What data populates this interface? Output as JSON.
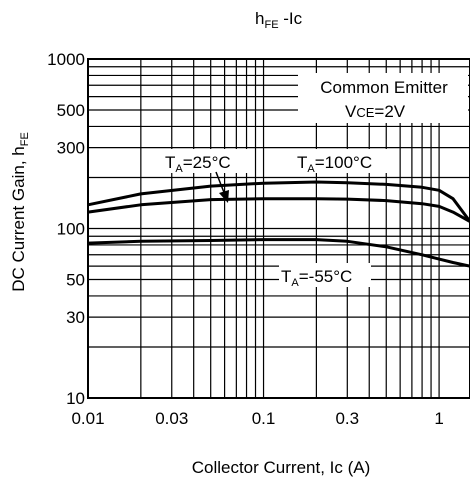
{
  "chart_data": {
    "type": "line",
    "title": "h",
    "title_sub": "FE",
    "title_tail": " -Ic",
    "xlabel": "Collector Current, Ic (A)",
    "ylabel": "DC Current Gain,  h",
    "ylabel_sub": "FE",
    "xscale": "log",
    "yscale": "log",
    "xlim": [
      0.01,
      1.5
    ],
    "ylim": [
      10,
      1000
    ],
    "grid": true,
    "x_tick_values": [
      0.01,
      0.03,
      0.1,
      0.3,
      1
    ],
    "x_tick_labels": [
      "0.01",
      "0.03",
      "0.1",
      "0.3",
      "1"
    ],
    "y_tick_values": [
      10,
      30,
      50,
      100,
      300,
      500,
      1000
    ],
    "y_tick_labels": [
      "10",
      "30",
      "50",
      "100",
      "300",
      "500",
      "1000"
    ],
    "series": [
      {
        "name": "TA=100°C",
        "x": [
          0.01,
          0.02,
          0.05,
          0.1,
          0.2,
          0.3,
          0.5,
          0.8,
          1.0,
          1.2,
          1.5
        ],
        "y": [
          138,
          160,
          178,
          185,
          188,
          186,
          182,
          175,
          168,
          150,
          110
        ]
      },
      {
        "name": "TA=25°C",
        "x": [
          0.01,
          0.02,
          0.05,
          0.1,
          0.2,
          0.3,
          0.5,
          0.8,
          1.0,
          1.2,
          1.5
        ],
        "y": [
          125,
          138,
          148,
          150,
          150,
          149,
          146,
          140,
          135,
          125,
          110
        ]
      },
      {
        "name": "TA=-55°C",
        "x": [
          0.01,
          0.02,
          0.05,
          0.1,
          0.2,
          0.3,
          0.5,
          0.8,
          1.0,
          1.2,
          1.5
        ],
        "y": [
          82,
          84,
          85,
          86,
          86,
          84,
          78,
          70,
          66,
          63,
          60
        ]
      }
    ],
    "annotations": {
      "box_line1": "Common Emitter",
      "box_line2_main": "V",
      "box_line2_sub": "CE",
      "box_line2_tail": "=2V",
      "t25_main": "T",
      "t25_sub": "A",
      "t25_tail": "=25°C",
      "t100_main": "T",
      "t100_sub": "A",
      "t100_tail": "=100°C",
      "tm55_main": "T",
      "tm55_sub": "A",
      "tm55_tail": "=-55°C"
    }
  }
}
